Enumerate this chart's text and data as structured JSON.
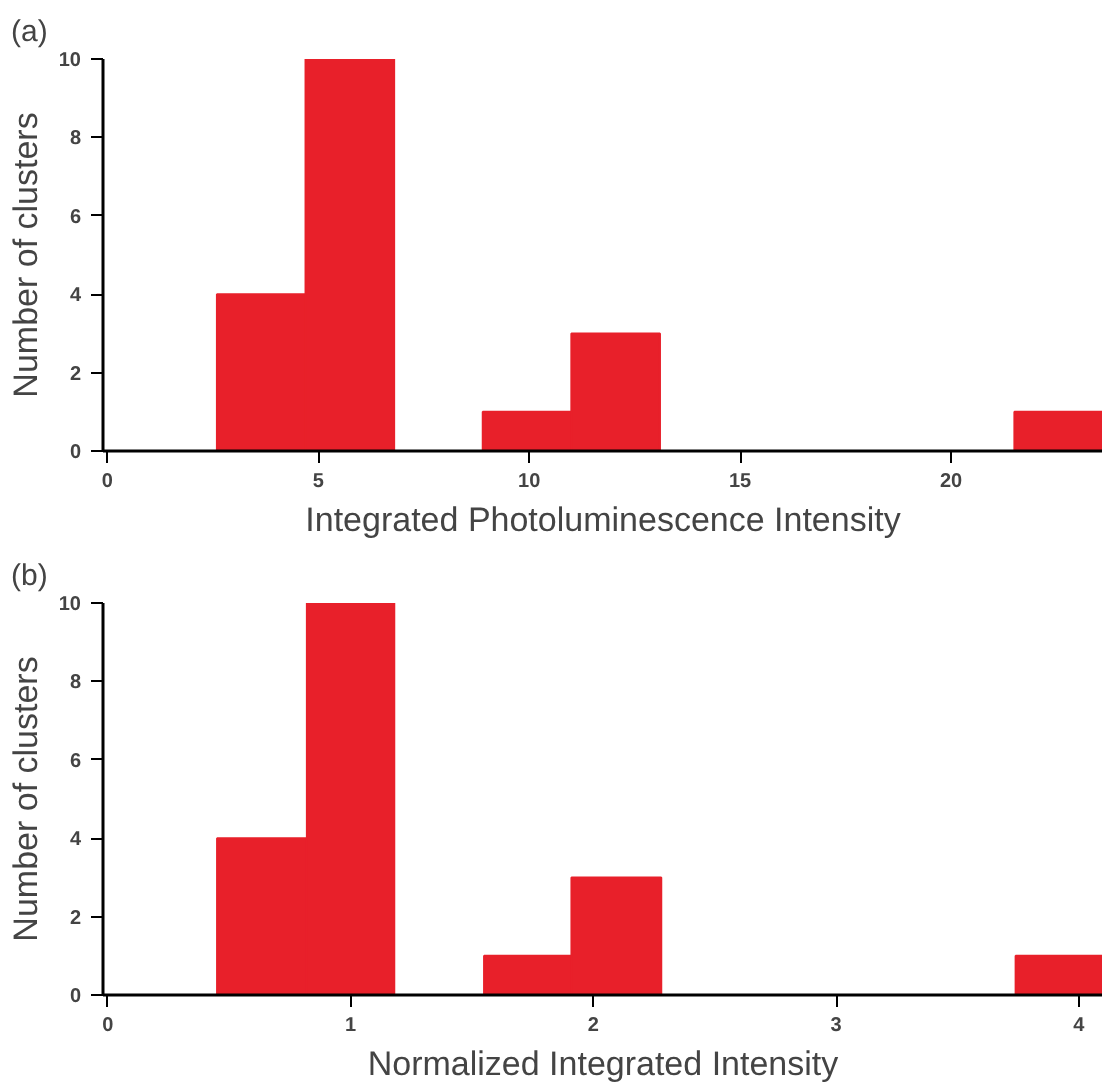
{
  "chart_data": [
    {
      "type": "histogram",
      "title": "(a)",
      "xlabel": "Integrated Photoluminescence Intensity",
      "ylabel": "Number of clusters",
      "color": "#e8202a",
      "bins": [
        2.6,
        4.7,
        6.8,
        8.9,
        11.0,
        13.1,
        15.2,
        17.3,
        19.4,
        21.5,
        23.6
      ],
      "values": [
        4,
        10,
        0,
        1,
        3,
        0,
        0,
        0,
        0,
        1
      ],
      "xlim": [
        -0.1,
        23.6
      ],
      "ylim": [
        0,
        10
      ],
      "xticks": [
        0,
        5,
        10,
        15,
        20
      ],
      "yticks": [
        0,
        2,
        4,
        6,
        8,
        10
      ],
      "grid": false
    },
    {
      "type": "histogram",
      "title": "(b)",
      "xlabel": "Normalized Integrated Intensity",
      "ylabel": "Number of clusters",
      "color": "#e8202a",
      "bins": [
        0.45,
        0.82,
        1.18,
        1.55,
        1.91,
        2.28,
        2.64,
        3.01,
        3.37,
        3.74,
        4.1
      ],
      "values": [
        4,
        10,
        0,
        1,
        3,
        0,
        0,
        0,
        0,
        1
      ],
      "xlim": [
        -0.02,
        4.1
      ],
      "ylim": [
        0,
        10
      ],
      "xticks": [
        0,
        1,
        2,
        3,
        4
      ],
      "yticks": [
        0,
        2,
        4,
        6,
        8,
        10
      ],
      "grid": false
    }
  ]
}
